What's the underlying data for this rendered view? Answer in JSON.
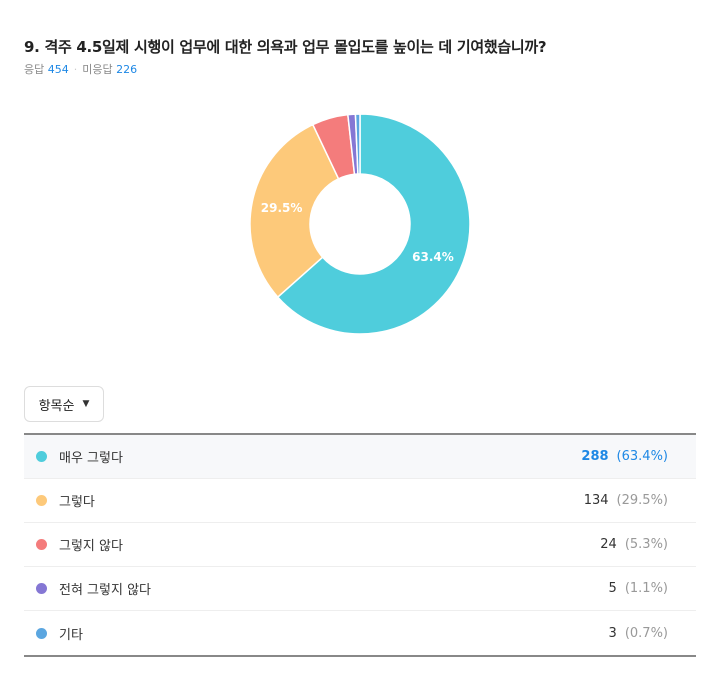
{
  "question": {
    "title": "9. 격주 4.5일제 시행이 업무에 대한 의욕과 업무 몰입도를 높이는 데 기여했습니까?",
    "responded_label": "응답",
    "responded_count": "454",
    "unanswered_label": "미응답",
    "unanswered_count": "226"
  },
  "sort": {
    "label": "항목순",
    "icon": "caret-down-icon"
  },
  "chart_data": {
    "type": "pie",
    "donut": true,
    "title": "",
    "categories": [
      "매우 그렇다",
      "그렇다",
      "그렇지 않다",
      "전혀 그렇지 않다",
      "기타"
    ],
    "values": [
      288,
      134,
      24,
      5,
      3
    ],
    "percents": [
      63.4,
      29.5,
      5.3,
      1.1,
      0.7
    ],
    "colors": [
      "#4fcddc",
      "#fdc97a",
      "#f47c7c",
      "#8577d4",
      "#5ba6e0"
    ],
    "slice_labels": [
      "63.4%",
      "29.5%",
      "",
      "",
      ""
    ],
    "legend": "table-below"
  },
  "rows": [
    {
      "label": "매우 그렇다",
      "count": "288",
      "pct": "(63.4%)",
      "color": "#4fcddc"
    },
    {
      "label": "그렇다",
      "count": "134",
      "pct": "(29.5%)",
      "color": "#fdc97a"
    },
    {
      "label": "그렇지 않다",
      "count": "24",
      "pct": "(5.3%)",
      "color": "#f47c7c"
    },
    {
      "label": "전혀 그렇지 않다",
      "count": "5",
      "pct": "(1.1%)",
      "color": "#8577d4"
    },
    {
      "label": "기타",
      "count": "3",
      "pct": "(0.7%)",
      "color": "#5ba6e0"
    }
  ]
}
